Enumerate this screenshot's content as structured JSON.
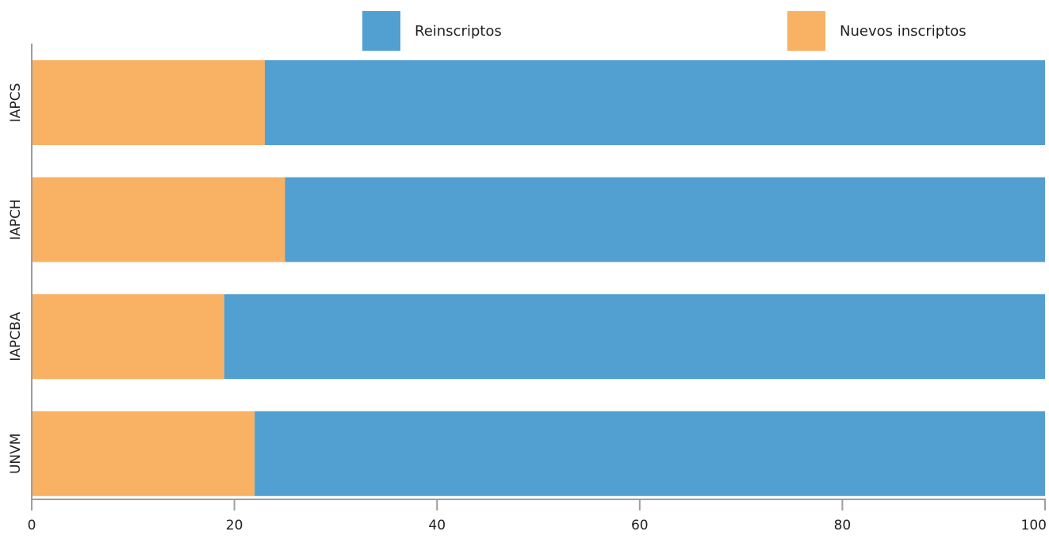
{
  "chart_data": {
    "type": "bar",
    "orientation": "horizontal",
    "stacked": true,
    "categories": [
      "IAPCS",
      "IAPCH",
      "IAPCBA",
      "UNVM"
    ],
    "series": [
      {
        "name": "Nuevos inscriptos",
        "values": [
          23,
          25,
          19,
          22
        ],
        "color": "#F9B163"
      },
      {
        "name": "Reinscriptos",
        "values": [
          77,
          75,
          81,
          78
        ],
        "color": "#529FD1"
      }
    ],
    "xlim": [
      0,
      100
    ],
    "xticks": [
      "0",
      "20",
      "40",
      "60",
      "80",
      "100"
    ],
    "legend": {
      "position": "top",
      "items": [
        {
          "label": "Reinscriptos",
          "color": "#529FD1"
        },
        {
          "label": "Nuevos inscriptos",
          "color": "#F9B163"
        }
      ]
    },
    "grid": false
  }
}
